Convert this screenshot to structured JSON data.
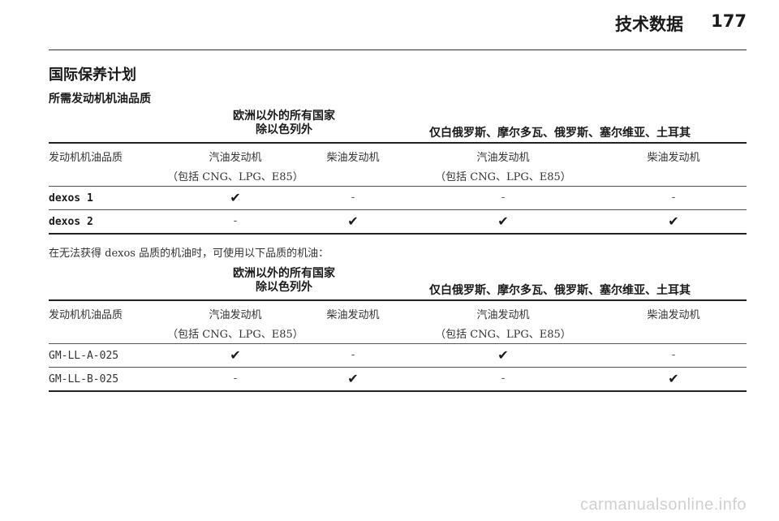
{
  "header": {
    "title": "技术数据",
    "page": "177"
  },
  "section_title": "国际保养计划",
  "sub_title": "所需发动机机油品质",
  "note": "在无法获得 dexos 品质的机油时，可使用以下品质的机油：",
  "tables": [
    {
      "group1_line1": "欧洲以外的所有国家",
      "group1_line2": "除以色列外",
      "group2": "仅白俄罗斯、摩尔多瓦、俄罗斯、塞尔维亚、土耳其",
      "col_quality": "发动机机油品质",
      "col_petrol1": "汽油发动机",
      "col_petrol1_sub": "（包括 CNG、LPG、E85）",
      "col_diesel1": "柴油发动机",
      "col_petrol2": "汽油发动机",
      "col_petrol2_sub": "（包括 CNG、LPG、E85）",
      "col_diesel2": "柴油发动机",
      "rows": [
        {
          "name": "dexos 1",
          "c1": "✔",
          "c2": "-",
          "c3": "-",
          "c4": "-"
        },
        {
          "name": "dexos 2",
          "c1": "-",
          "c2": "✔",
          "c3": "✔",
          "c4": "✔"
        }
      ]
    },
    {
      "group1_line1": "欧洲以外的所有国家",
      "group1_line2": "除以色列外",
      "group2": "仅白俄罗斯、摩尔多瓦、俄罗斯、塞尔维亚、土耳其",
      "col_quality": "发动机机油品质",
      "col_petrol1": "汽油发动机",
      "col_petrol1_sub": "（包括 CNG、LPG、E85）",
      "col_diesel1": "柴油发动机",
      "col_petrol2": "汽油发动机",
      "col_petrol2_sub": "（包括 CNG、LPG、E85）",
      "col_diesel2": "柴油发动机",
      "rows": [
        {
          "name": "GM-LL-A-025",
          "c1": "✔",
          "c2": "-",
          "c3": "✔",
          "c4": "-"
        },
        {
          "name": "GM-LL-B-025",
          "c1": "-",
          "c2": "✔",
          "c3": "-",
          "c4": "✔"
        }
      ]
    }
  ],
  "watermark": "carmanualsonline.info"
}
